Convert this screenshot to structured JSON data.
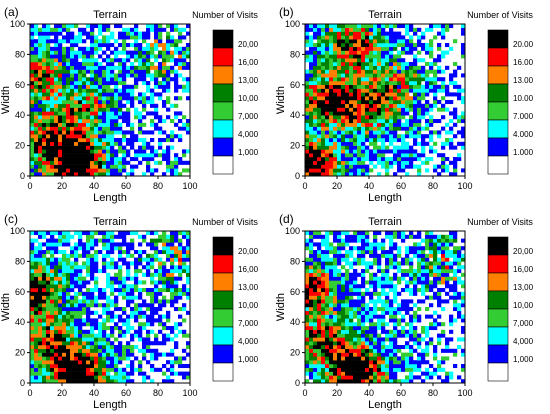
{
  "chart_data": [
    {
      "type": "heatmap",
      "panel_label": "(a)",
      "title": "Terrain",
      "xlabel": "Length",
      "ylabel": "Width",
      "xlim": [
        0,
        100
      ],
      "ylim": [
        0,
        100
      ],
      "xticks": [
        "0",
        "20",
        "40",
        "60",
        "80",
        "100"
      ],
      "yticks": [
        "0",
        "20",
        "40",
        "60",
        "80",
        "100"
      ],
      "legend_title": "Number of Visits",
      "legend_labels": [
        "20,00",
        "16,00",
        "13,00",
        "10,00",
        "7,000",
        "4,000",
        "1,000"
      ],
      "legend_colors": [
        "#000000",
        "#ff0000",
        "#ff8000",
        "#008000",
        "#33cc33",
        "#00ffff",
        "#0000ff",
        "#ffffff"
      ],
      "hotspots": [
        {
          "x": 30,
          "y": 8,
          "strength": 1.0
        },
        {
          "x": 12,
          "y": 25,
          "strength": 0.7
        },
        {
          "x": 5,
          "y": 65,
          "strength": 0.6
        },
        {
          "x": 35,
          "y": 45,
          "strength": 0.45
        },
        {
          "x": 85,
          "y": 80,
          "strength": 0.4
        }
      ]
    },
    {
      "type": "heatmap",
      "panel_label": "(b)",
      "title": "Terrain",
      "xlabel": "Length",
      "ylabel": "Width",
      "xlim": [
        0,
        100
      ],
      "ylim": [
        0,
        100
      ],
      "xticks": [
        "0",
        "20",
        "40",
        "60",
        "80",
        "100"
      ],
      "yticks": [
        "0",
        "20",
        "40",
        "60",
        "80",
        "100"
      ],
      "legend_title": "Number of Visits",
      "legend_labels": [
        "20.00",
        "16.00",
        "13.00",
        "10.00",
        "7.000",
        "4.000",
        "1.000"
      ],
      "legend_colors": [
        "#000000",
        "#ff0000",
        "#ff8000",
        "#008000",
        "#33cc33",
        "#00ffff",
        "#0000ff",
        "#ffffff"
      ],
      "hotspots": [
        {
          "x": 5,
          "y": 8,
          "strength": 0.9
        },
        {
          "x": 15,
          "y": 50,
          "strength": 0.8
        },
        {
          "x": 30,
          "y": 85,
          "strength": 0.7
        },
        {
          "x": 40,
          "y": 45,
          "strength": 0.6
        },
        {
          "x": 60,
          "y": 60,
          "strength": 0.4
        }
      ]
    },
    {
      "type": "heatmap",
      "panel_label": "(c)",
      "title": "Terrain",
      "xlabel": "Length",
      "ylabel": "Width",
      "xlim": [
        0,
        100
      ],
      "ylim": [
        0,
        100
      ],
      "xticks": [
        "0",
        "20",
        "40",
        "60",
        "80",
        "100"
      ],
      "yticks": [
        "0",
        "20",
        "40",
        "60",
        "80",
        "100"
      ],
      "legend_title": "Number of Visits",
      "legend_labels": [
        "20,00",
        "16,00",
        "13,00",
        "10,00",
        "7,000",
        "4,000",
        "1,000"
      ],
      "legend_colors": [
        "#000000",
        "#ff0000",
        "#ff8000",
        "#008000",
        "#33cc33",
        "#00ffff",
        "#0000ff",
        "#ffffff"
      ],
      "hotspots": [
        {
          "x": 30,
          "y": 6,
          "strength": 1.0
        },
        {
          "x": 3,
          "y": 60,
          "strength": 0.8
        },
        {
          "x": 12,
          "y": 25,
          "strength": 0.6
        },
        {
          "x": 90,
          "y": 80,
          "strength": 0.4
        }
      ]
    },
    {
      "type": "heatmap",
      "panel_label": "(d)",
      "title": "Terrain",
      "xlabel": "Length",
      "ylabel": "Width",
      "xlim": [
        0,
        100
      ],
      "ylim": [
        0,
        100
      ],
      "xticks": [
        "0",
        "20",
        "40",
        "60",
        "80",
        "100"
      ],
      "yticks": [
        "0",
        "20",
        "40",
        "60",
        "80",
        "100"
      ],
      "legend_title": "Number of Visits",
      "legend_labels": [
        "20,00",
        "16,00",
        "13,00",
        "10,00",
        "7,000",
        "4,000",
        "1,000"
      ],
      "legend_colors": [
        "#000000",
        "#ff0000",
        "#ff8000",
        "#008000",
        "#33cc33",
        "#00ffff",
        "#0000ff",
        "#ffffff"
      ],
      "hotspots": [
        {
          "x": 32,
          "y": 8,
          "strength": 1.0
        },
        {
          "x": 3,
          "y": 62,
          "strength": 0.7
        },
        {
          "x": 12,
          "y": 28,
          "strength": 0.6
        },
        {
          "x": 88,
          "y": 78,
          "strength": 0.4
        }
      ]
    }
  ]
}
